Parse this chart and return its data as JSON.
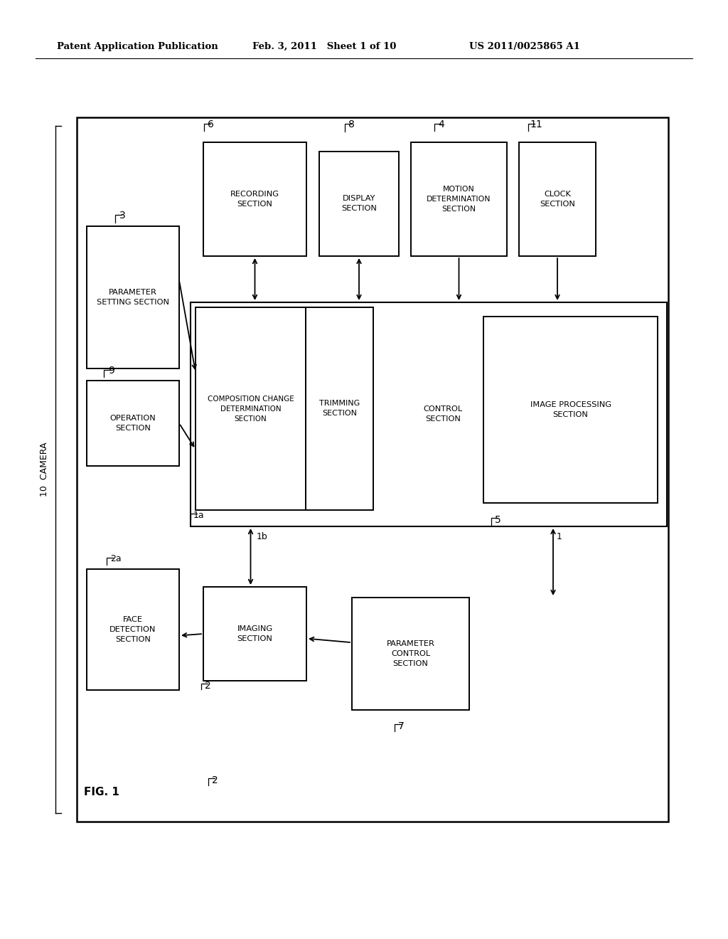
{
  "bg_color": "#ffffff",
  "header_left": "Patent Application Publication",
  "header_mid": "Feb. 3, 2011   Sheet 1 of 10",
  "header_right": "US 2011/0025865 A1",
  "fig_label": "FIG. 1"
}
